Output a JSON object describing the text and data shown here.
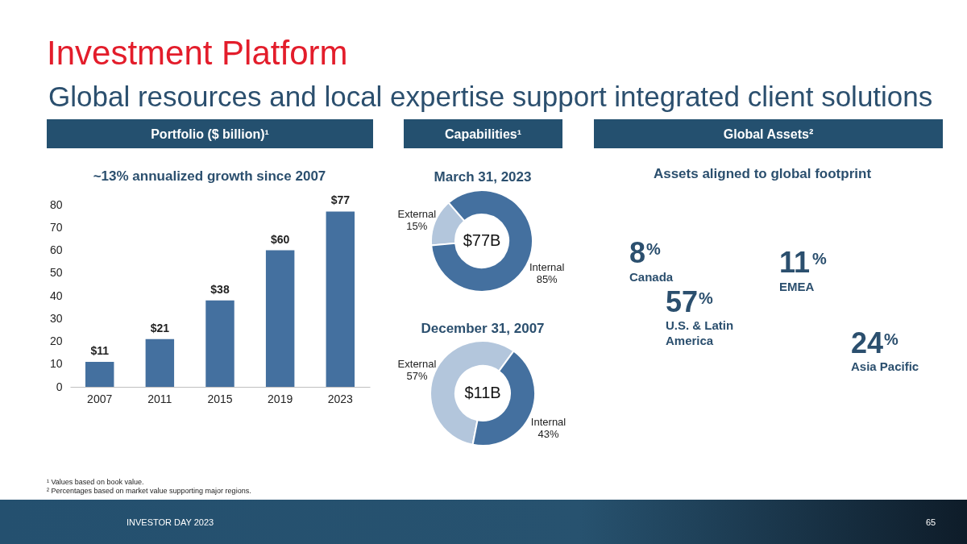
{
  "chart_data": [
    {
      "type": "other",
      "title": "Investment Platform",
      "subtitle": "Global resources and local expertise support integrated client solutions",
      "annotations": [
        "¹ Values based on book value.",
        "² Percentages based on market value supporting major regions.",
        "INVESTOR DAY 2023",
        "65"
      ]
    },
    {
      "type": "bar",
      "title": "Portfolio ($ billion)¹",
      "subtitle": "~13% annualized growth since 2007",
      "categories": [
        "2007",
        "2011",
        "2015",
        "2019",
        "2023"
      ],
      "values": [
        11,
        21,
        38,
        60,
        77
      ],
      "value_labels": [
        "$11",
        "$21",
        "$38",
        "$60",
        "$77"
      ],
      "color": "#44709f",
      "ylim": [
        0,
        80
      ],
      "yticks": [
        0,
        10,
        20,
        30,
        40,
        50,
        60,
        70,
        80
      ],
      "grid": false
    },
    {
      "type": "donut",
      "title": "Capabilities¹",
      "subtitle": "March 31, 2023",
      "categories": [
        "External",
        "Internal"
      ],
      "values": [
        15,
        85
      ],
      "value_labels": [
        "15%",
        "85%"
      ],
      "colors": [
        "#b3c6dc",
        "#44709f"
      ],
      "annotations": [
        "$77B"
      ]
    },
    {
      "type": "donut",
      "title": "December 31, 2007",
      "categories": [
        "External",
        "Internal"
      ],
      "values": [
        57,
        43
      ],
      "value_labels": [
        "57%",
        "43%"
      ],
      "colors": [
        "#b3c6dc",
        "#44709f"
      ],
      "annotations": [
        "$11B"
      ]
    },
    {
      "type": "other",
      "title": "Global Assets²",
      "subtitle": "Assets aligned to global footprint",
      "categories": [
        "Canada",
        "EMEA",
        "U.S. & Latin America",
        "Asia Pacific"
      ],
      "values": [
        8,
        11,
        57,
        24
      ],
      "value_labels": [
        "8%",
        "11%",
        "57%",
        "24%"
      ]
    }
  ]
}
